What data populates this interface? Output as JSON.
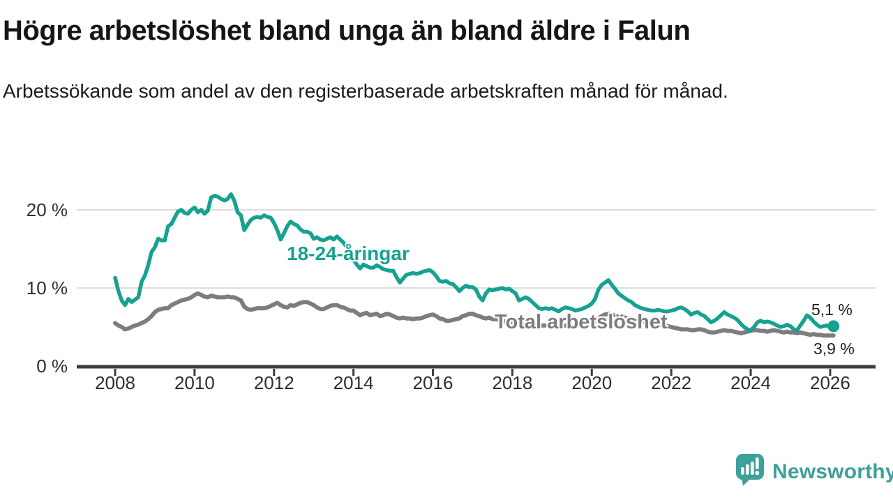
{
  "header": {
    "title": "Högre arbetslöshet bland unga än bland äldre i Falun",
    "subtitle": "Arbetssökande som andel av den registerbaserade arbetskraften månad för månad."
  },
  "chart_data": {
    "type": "line",
    "title": "Högre arbetslöshet bland unga än bland äldre i Falun",
    "xlabel": "",
    "ylabel": "Arbetssökande som andel av den registerbaserade arbetskraften",
    "unit": "%",
    "frequency": "monthly",
    "x_start": "2008-01",
    "x_end": "2026-02",
    "ylim": [
      0,
      23
    ],
    "grid": "horizontal",
    "x_ticks": [
      2008,
      2010,
      2012,
      2014,
      2016,
      2018,
      2020,
      2022,
      2024,
      2026
    ],
    "y_ticks": [
      {
        "value": 20,
        "label": "20 %"
      },
      {
        "value": 10,
        "label": "10 %"
      },
      {
        "value": 0,
        "label": "0 %"
      }
    ],
    "colors": {
      "grid": "#dcdcdc",
      "axis": "#3d3d3d"
    },
    "series": [
      {
        "name": "18-24-åringar",
        "color": "#17a191",
        "end_label": "5,1 %",
        "end_value": 5.1,
        "values": [
          11.3,
          9.6,
          8.4,
          7.8,
          8.6,
          8.2,
          8.5,
          8.8,
          10.8,
          11.6,
          12.9,
          14.6,
          15.2,
          16.3,
          16.1,
          16.1,
          17.9,
          18.2,
          19.0,
          19.8,
          20.0,
          19.6,
          19.5,
          20.0,
          20.3,
          19.7,
          20.0,
          19.5,
          19.9,
          21.6,
          21.8,
          21.7,
          21.4,
          21.2,
          21.4,
          22.0,
          21.2,
          19.7,
          19.3,
          17.4,
          18.1,
          18.7,
          19.0,
          19.1,
          19.0,
          19.3,
          19.1,
          19.0,
          18.3,
          17.4,
          16.2,
          17.0,
          17.9,
          18.5,
          18.2,
          18.0,
          17.5,
          17.2,
          17.2,
          17.0,
          16.3,
          16.5,
          16.2,
          16.1,
          16.3,
          16.5,
          16.2,
          16.6,
          16.2,
          15.8,
          15.2,
          14.6,
          13.6,
          13.0,
          12.5,
          13.0,
          12.8,
          12.6,
          12.6,
          12.9,
          12.7,
          12.4,
          12.3,
          12.2,
          12.2,
          11.4,
          10.7,
          11.2,
          11.7,
          11.8,
          11.9,
          11.8,
          11.9,
          12.1,
          12.2,
          12.3,
          12.0,
          11.5,
          10.9,
          10.8,
          10.9,
          10.6,
          10.5,
          10.1,
          9.6,
          10.0,
          10.3,
          10.1,
          10.1,
          9.8,
          8.9,
          8.4,
          9.3,
          9.8,
          9.7,
          9.8,
          9.9,
          10.0,
          9.8,
          9.9,
          9.6,
          9.3,
          8.4,
          8.6,
          8.8,
          8.6,
          8.2,
          7.8,
          7.4,
          7.3,
          7.4,
          7.3,
          7.4,
          7.2,
          7.0,
          7.3,
          7.5,
          7.4,
          7.3,
          7.1,
          7.2,
          7.3,
          7.5,
          7.7,
          8.0,
          8.6,
          9.8,
          10.4,
          10.7,
          11.0,
          10.4,
          9.9,
          9.3,
          9.0,
          8.7,
          8.4,
          8.2,
          7.8,
          7.6,
          7.4,
          7.3,
          7.2,
          7.1,
          7.1,
          7.2,
          7.1,
          7.0,
          7.0,
          7.1,
          7.2,
          7.4,
          7.5,
          7.3,
          7.0,
          6.6,
          6.8,
          6.9,
          6.6,
          6.4,
          6.0,
          5.6,
          5.8,
          6.1,
          6.5,
          6.9,
          6.6,
          6.4,
          6.2,
          5.9,
          5.4,
          5.0,
          4.7,
          4.6,
          5.0,
          5.6,
          5.8,
          5.6,
          5.7,
          5.6,
          5.4,
          5.2,
          5.0,
          5.1,
          5.3,
          5.1,
          4.7,
          4.6,
          5.2,
          5.8,
          6.5,
          6.2,
          5.7,
          5.3,
          5.0,
          5.1,
          5.2,
          5.0,
          5.1
        ]
      },
      {
        "name": "Total arbetslöshet",
        "color": "#7d7d81",
        "end_label": "3,9 %",
        "end_value": 3.9,
        "values": [
          5.5,
          5.2,
          5.0,
          4.7,
          4.8,
          5.0,
          5.2,
          5.3,
          5.5,
          5.7,
          6.0,
          6.4,
          6.9,
          7.2,
          7.3,
          7.4,
          7.4,
          7.8,
          8.0,
          8.2,
          8.4,
          8.5,
          8.6,
          8.8,
          9.1,
          9.3,
          9.1,
          8.9,
          8.8,
          9.0,
          8.9,
          8.8,
          8.8,
          8.8,
          8.9,
          8.8,
          8.8,
          8.6,
          8.4,
          7.6,
          7.3,
          7.2,
          7.3,
          7.4,
          7.4,
          7.4,
          7.5,
          7.7,
          7.9,
          8.1,
          7.8,
          7.6,
          7.5,
          7.8,
          7.7,
          7.9,
          8.1,
          8.2,
          8.2,
          8.0,
          7.8,
          7.5,
          7.3,
          7.3,
          7.5,
          7.7,
          7.8,
          7.8,
          7.6,
          7.5,
          7.3,
          7.1,
          7.1,
          6.8,
          6.5,
          6.7,
          6.8,
          6.5,
          6.6,
          6.7,
          6.4,
          6.5,
          6.7,
          6.6,
          6.4,
          6.2,
          6.1,
          6.2,
          6.1,
          6.1,
          6.0,
          6.1,
          6.1,
          6.2,
          6.4,
          6.5,
          6.6,
          6.4,
          6.1,
          6.0,
          5.8,
          5.8,
          5.9,
          6.0,
          6.1,
          6.4,
          6.5,
          6.7,
          6.7,
          6.5,
          6.4,
          6.2,
          6.1,
          6.2,
          6.0,
          6.0,
          5.9,
          5.8,
          5.7,
          5.7,
          5.6,
          5.5,
          5.3,
          5.4,
          5.4,
          5.3,
          5.2,
          5.2,
          5.1,
          5.2,
          5.2,
          5.2,
          5.1,
          5.1,
          5.0,
          5.1,
          5.2,
          5.2,
          5.1,
          5.1,
          5.2,
          5.2,
          5.3,
          5.4,
          5.5,
          5.7,
          6.1,
          6.4,
          6.6,
          6.7,
          6.6,
          6.5,
          6.4,
          6.3,
          6.2,
          6.1,
          6.1,
          6.0,
          5.9,
          5.8,
          5.7,
          5.6,
          5.5,
          5.5,
          5.4,
          5.3,
          5.2,
          5.1,
          5.0,
          4.9,
          4.8,
          4.7,
          4.7,
          4.7,
          4.6,
          4.6,
          4.7,
          4.7,
          4.6,
          4.4,
          4.3,
          4.3,
          4.4,
          4.5,
          4.6,
          4.5,
          4.5,
          4.4,
          4.3,
          4.2,
          4.3,
          4.4,
          4.5,
          4.6,
          4.6,
          4.5,
          4.5,
          4.4,
          4.5,
          4.6,
          4.5,
          4.4,
          4.3,
          4.4,
          4.3,
          4.3,
          4.2,
          4.3,
          4.2,
          4.1,
          4.0,
          4.1,
          4.0,
          4.0,
          3.9,
          3.9,
          3.9,
          3.9
        ]
      }
    ]
  },
  "branding": {
    "name": "Newsworthy",
    "color": "#3da09a"
  }
}
